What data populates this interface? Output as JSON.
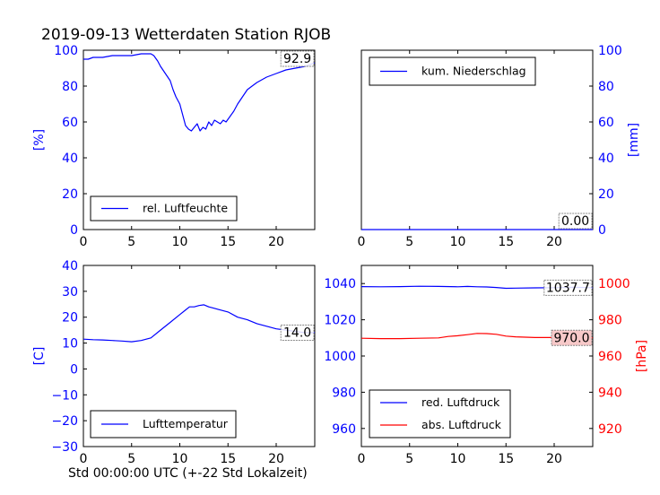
{
  "title": "2019-09-13 Wetterdaten Station RJOB",
  "xlabel": "Std 00:00:00 UTC (+-22 Std Lokalzeit)",
  "colors": {
    "blue": "#0000ff",
    "red": "#ff0000",
    "black": "#000000",
    "valuebox_red": "#f7c9c9"
  },
  "chart_data": [
    {
      "type": "line",
      "id": "humidity",
      "xlim": [
        0,
        24
      ],
      "ylim": [
        0,
        100
      ],
      "xticks": [
        0,
        5,
        10,
        15,
        20
      ],
      "yticks": [
        0,
        20,
        40,
        60,
        80,
        100
      ],
      "ylabel": "[%]",
      "legend_position": "lower-center",
      "value_label": "92.9",
      "series": [
        {
          "name": "rel. Luftfeuchte",
          "color": "#0000ff",
          "x": [
            0,
            0.5,
            1,
            2,
            3,
            4,
            5,
            6,
            7,
            7.3,
            7.7,
            8,
            8.5,
            9,
            9.3,
            9.6,
            10,
            10.3,
            10.6,
            10.9,
            11.2,
            11.5,
            11.8,
            12.1,
            12.4,
            12.7,
            13,
            13.3,
            13.6,
            13.9,
            14.2,
            14.5,
            14.8,
            15.2,
            15.6,
            16,
            16.5,
            17,
            17.5,
            18,
            19,
            20,
            21,
            22,
            23,
            24
          ],
          "y": [
            95,
            95,
            96,
            96,
            97,
            97,
            97,
            98,
            98,
            97,
            94,
            91,
            87,
            83,
            78,
            74,
            70,
            64,
            58,
            56,
            55,
            57,
            59,
            55,
            57,
            56,
            60,
            58,
            61,
            60,
            59,
            61,
            60,
            63,
            66,
            70,
            74,
            78,
            80,
            82,
            85,
            87,
            89,
            90,
            91,
            93
          ]
        }
      ]
    },
    {
      "type": "line",
      "id": "precipitation",
      "xlim": [
        0,
        24
      ],
      "ylim": [
        0,
        100
      ],
      "xticks": [
        0,
        5,
        10,
        15,
        20
      ],
      "yticks": [
        0,
        20,
        40,
        60,
        80,
        100
      ],
      "ylabel": "[mm]",
      "yaxis_side": "right",
      "legend_position": "upper-left",
      "value_label": "0.00",
      "series": [
        {
          "name": "kum. Niederschlag",
          "color": "#0000ff",
          "x": [
            0,
            24
          ],
          "y": [
            0,
            0
          ]
        }
      ]
    },
    {
      "type": "line",
      "id": "temperature",
      "xlim": [
        0,
        24
      ],
      "ylim": [
        -30,
        40
      ],
      "xticks": [
        0,
        5,
        10,
        15,
        20
      ],
      "yticks": [
        -30,
        -20,
        -10,
        0,
        10,
        20,
        30,
        40
      ],
      "ylabel": "[C]",
      "legend_position": "lower-center",
      "value_label": "14.0",
      "series": [
        {
          "name": "Lufttemperatur",
          "color": "#0000ff",
          "x": [
            0,
            1,
            2,
            3,
            4,
            5,
            6,
            7,
            8,
            9,
            10,
            10.5,
            11,
            11.5,
            12,
            12.5,
            13,
            13.5,
            14,
            15,
            16,
            17,
            18,
            19,
            20,
            21,
            22,
            23,
            24
          ],
          "y": [
            11.5,
            11.3,
            11.2,
            11,
            10.8,
            10.5,
            11,
            12,
            15,
            18,
            21,
            22.5,
            24,
            24,
            24.5,
            24.8,
            24,
            23.5,
            23,
            22,
            20,
            19,
            17.5,
            16.5,
            15.5,
            15,
            14.5,
            14,
            14
          ]
        }
      ]
    },
    {
      "type": "line",
      "id": "pressure",
      "xlim": [
        0,
        24
      ],
      "ylim": [
        950,
        1050
      ],
      "ylim_right": [
        910,
        1010
      ],
      "xticks": [
        0,
        5,
        10,
        15,
        20
      ],
      "yticks": [
        960,
        980,
        1000,
        1020,
        1040
      ],
      "yticks_right": [
        920,
        940,
        960,
        980,
        1000
      ],
      "ylabel_right": "[hPa]",
      "legend_position": "lower-left",
      "value_labels": [
        "1037.7",
        "970.0"
      ],
      "series": [
        {
          "name": "red. Luftdruck",
          "color": "#0000ff",
          "axis": "left",
          "x": [
            0,
            2,
            4,
            6,
            8,
            10,
            11,
            12,
            13,
            14,
            15,
            16,
            18,
            20,
            22,
            24
          ],
          "y": [
            1038.3,
            1038.2,
            1038.3,
            1038.5,
            1038.4,
            1038.2,
            1038.4,
            1038.2,
            1038.1,
            1037.8,
            1037.4,
            1037.5,
            1037.6,
            1037.7,
            1037.9,
            1037.7
          ]
        },
        {
          "name": "abs. Luftdruck",
          "color": "#ff0000",
          "axis": "right",
          "x": [
            0,
            2,
            4,
            6,
            8,
            9,
            10,
            11,
            12,
            13,
            14,
            15,
            16,
            18,
            20,
            22,
            24
          ],
          "y": [
            969.8,
            969.6,
            969.6,
            969.8,
            970.0,
            970.8,
            971.2,
            971.8,
            972.5,
            972.4,
            972.0,
            971.0,
            970.6,
            970.2,
            970.2,
            970.3,
            970.0
          ]
        }
      ]
    }
  ]
}
